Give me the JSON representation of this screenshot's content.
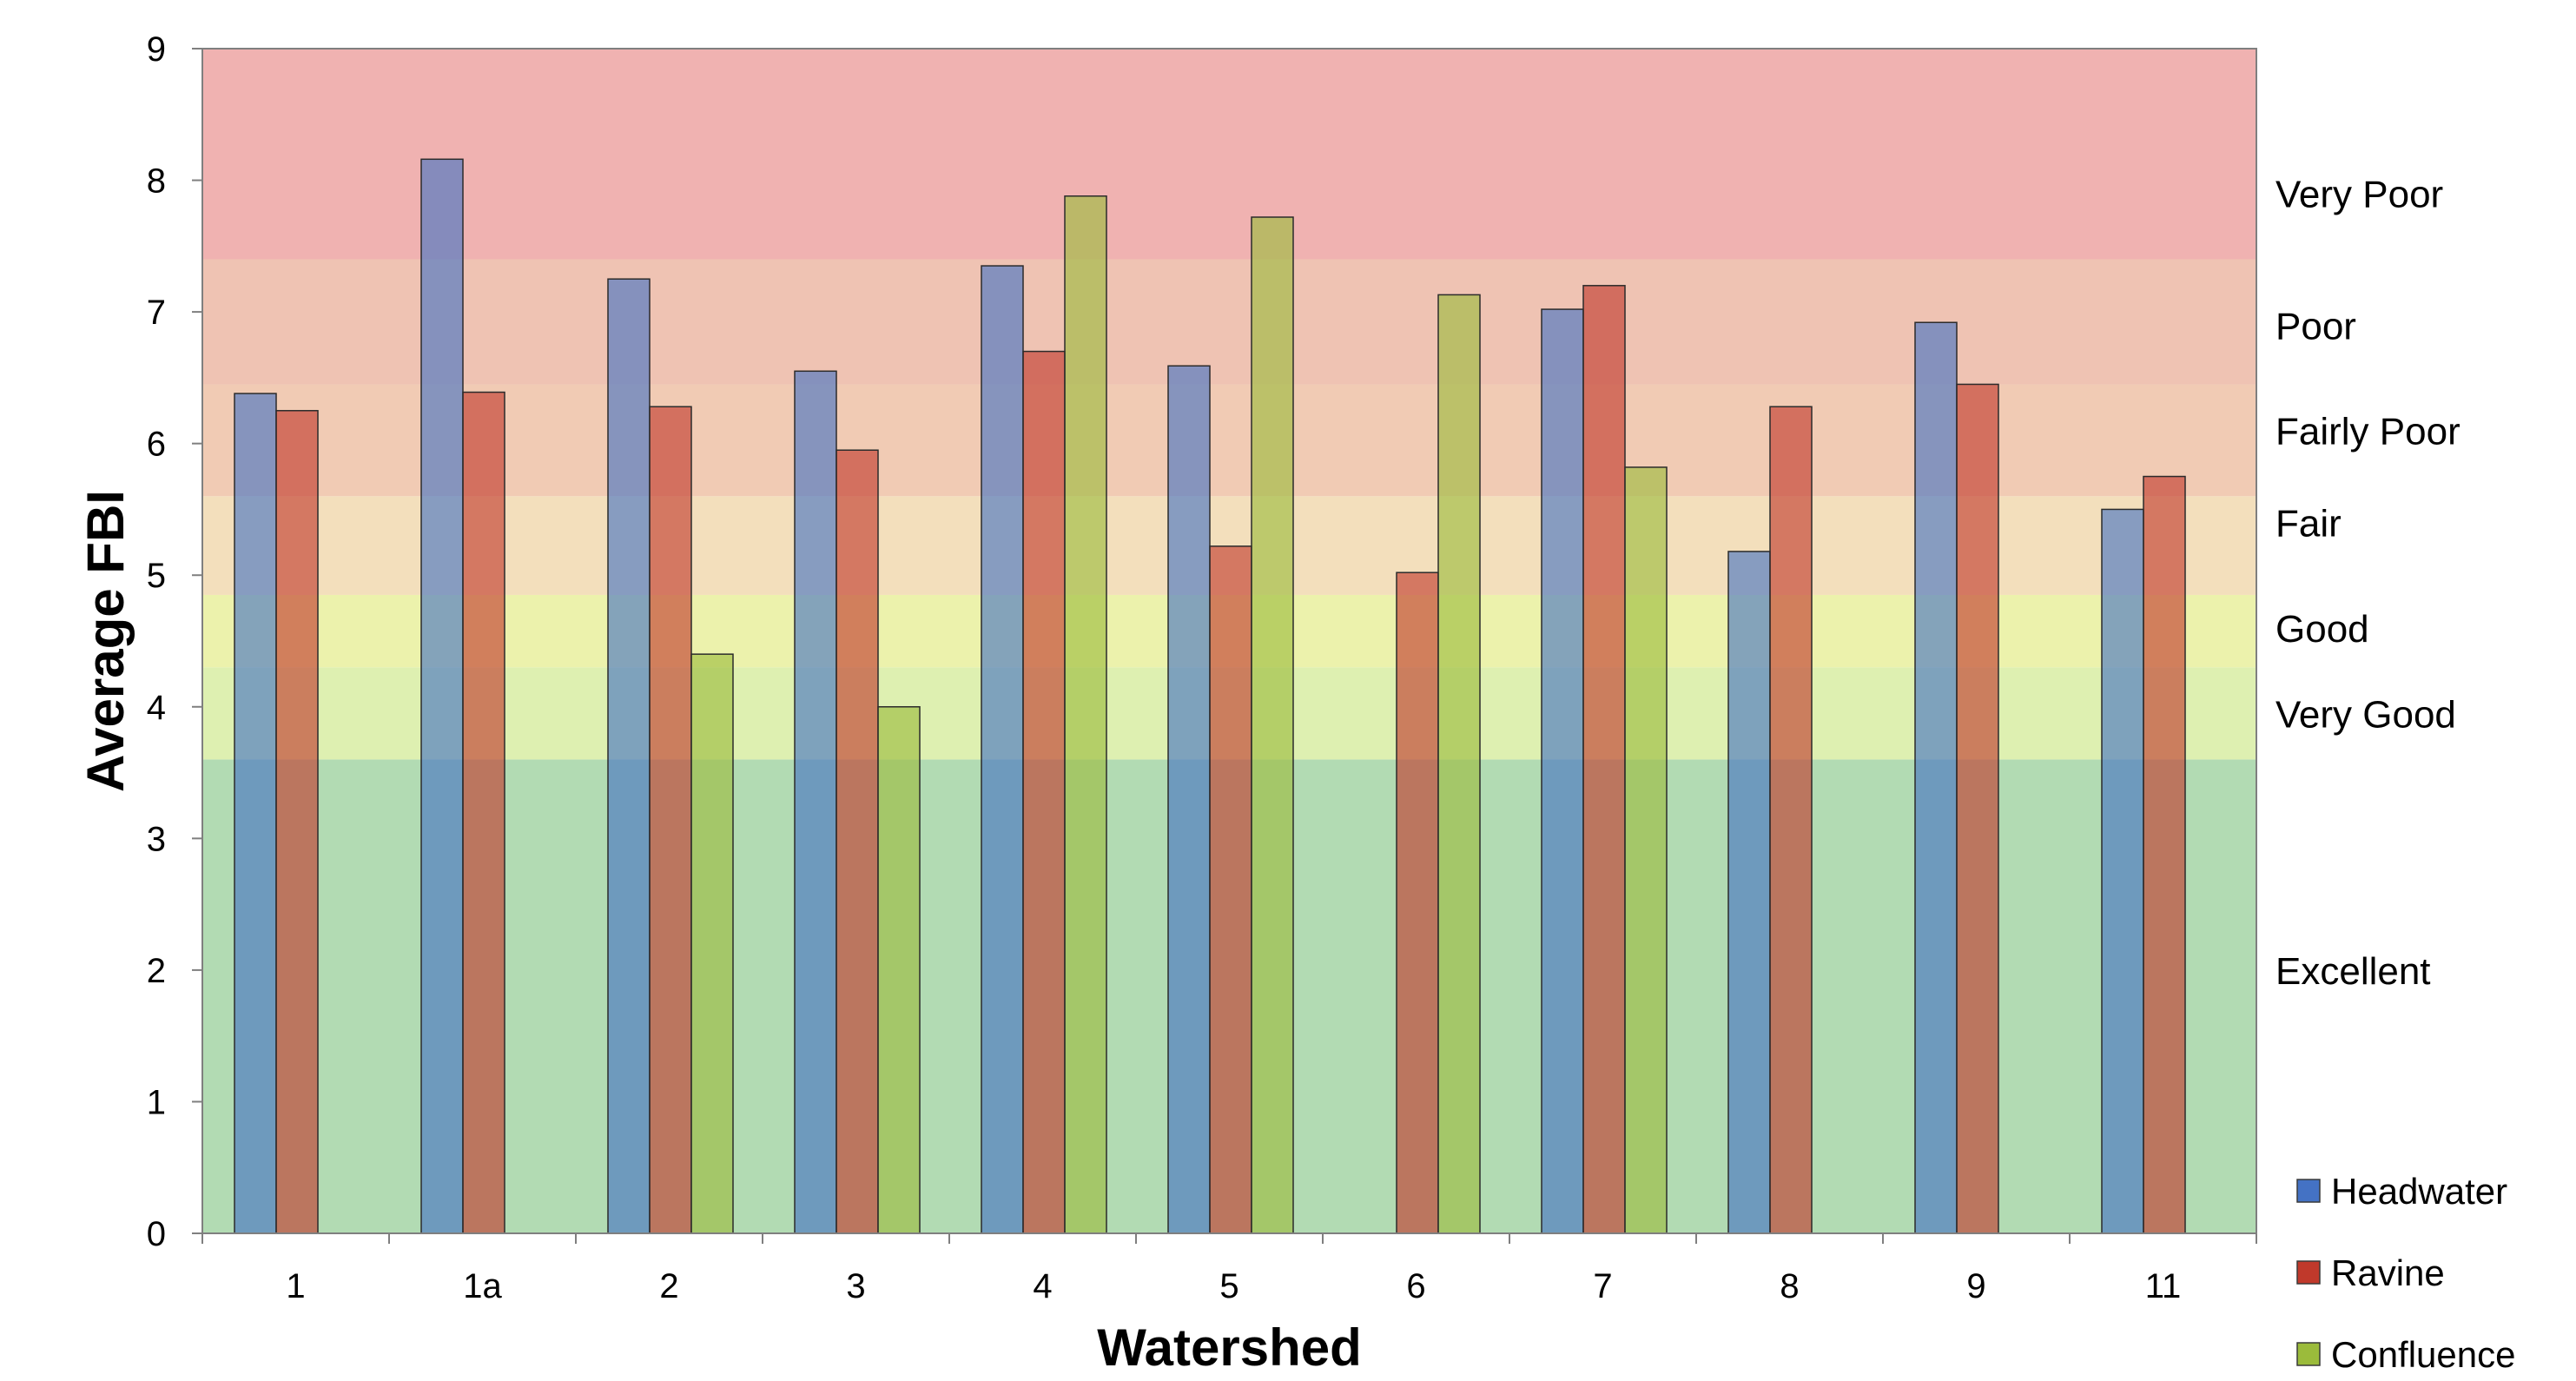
{
  "chart_data": {
    "type": "bar",
    "xlabel": "Watershed",
    "ylabel": "Average FBI",
    "ylim": [
      0,
      9
    ],
    "yticks": [
      "0",
      "1",
      "2",
      "3",
      "4",
      "5",
      "6",
      "7",
      "8",
      "9"
    ],
    "categories": [
      "1",
      "1a",
      "2",
      "3",
      "4",
      "5",
      "6",
      "7",
      "8",
      "9",
      "11"
    ],
    "series": [
      {
        "name": "Headwater",
        "values": [
          6.38,
          8.16,
          7.25,
          6.55,
          7.35,
          6.59,
          null,
          7.02,
          5.18,
          6.92,
          5.5
        ]
      },
      {
        "name": "Ravine",
        "values": [
          6.25,
          6.39,
          6.28,
          5.95,
          6.7,
          5.22,
          5.02,
          7.2,
          6.28,
          6.45,
          5.75
        ]
      },
      {
        "name": "Confluence",
        "values": [
          null,
          null,
          4.4,
          4.0,
          7.88,
          7.72,
          7.13,
          5.82,
          null,
          null,
          null
        ]
      }
    ],
    "bands": [
      {
        "label": "Excellent",
        "from": 0,
        "to": 3.6
      },
      {
        "label": "Very Good",
        "from": 3.6,
        "to": 4.3
      },
      {
        "label": "Good",
        "from": 4.3,
        "to": 4.85
      },
      {
        "label": "Fair",
        "from": 4.85,
        "to": 5.6
      },
      {
        "label": "Fairly Poor",
        "from": 5.6,
        "to": 6.45
      },
      {
        "label": "Poor",
        "from": 6.45,
        "to": 7.4
      },
      {
        "label": "Very Poor",
        "from": 7.4,
        "to": 9.0
      }
    ],
    "band_label_values": [
      2.0,
      3.95,
      4.6,
      5.4,
      6.1,
      6.9,
      7.9
    ],
    "band_colors": [
      "#b2dbb3",
      "#def0b1",
      "#ecf2ac",
      "#f3dfbc",
      "#f1cbb4",
      "#efc3b3",
      "#f0b2b1"
    ],
    "series_colors": [
      "#4472c4",
      "#c0392b",
      "#9bbb3b"
    ],
    "grid": false,
    "legend_position": "bottom-right"
  }
}
